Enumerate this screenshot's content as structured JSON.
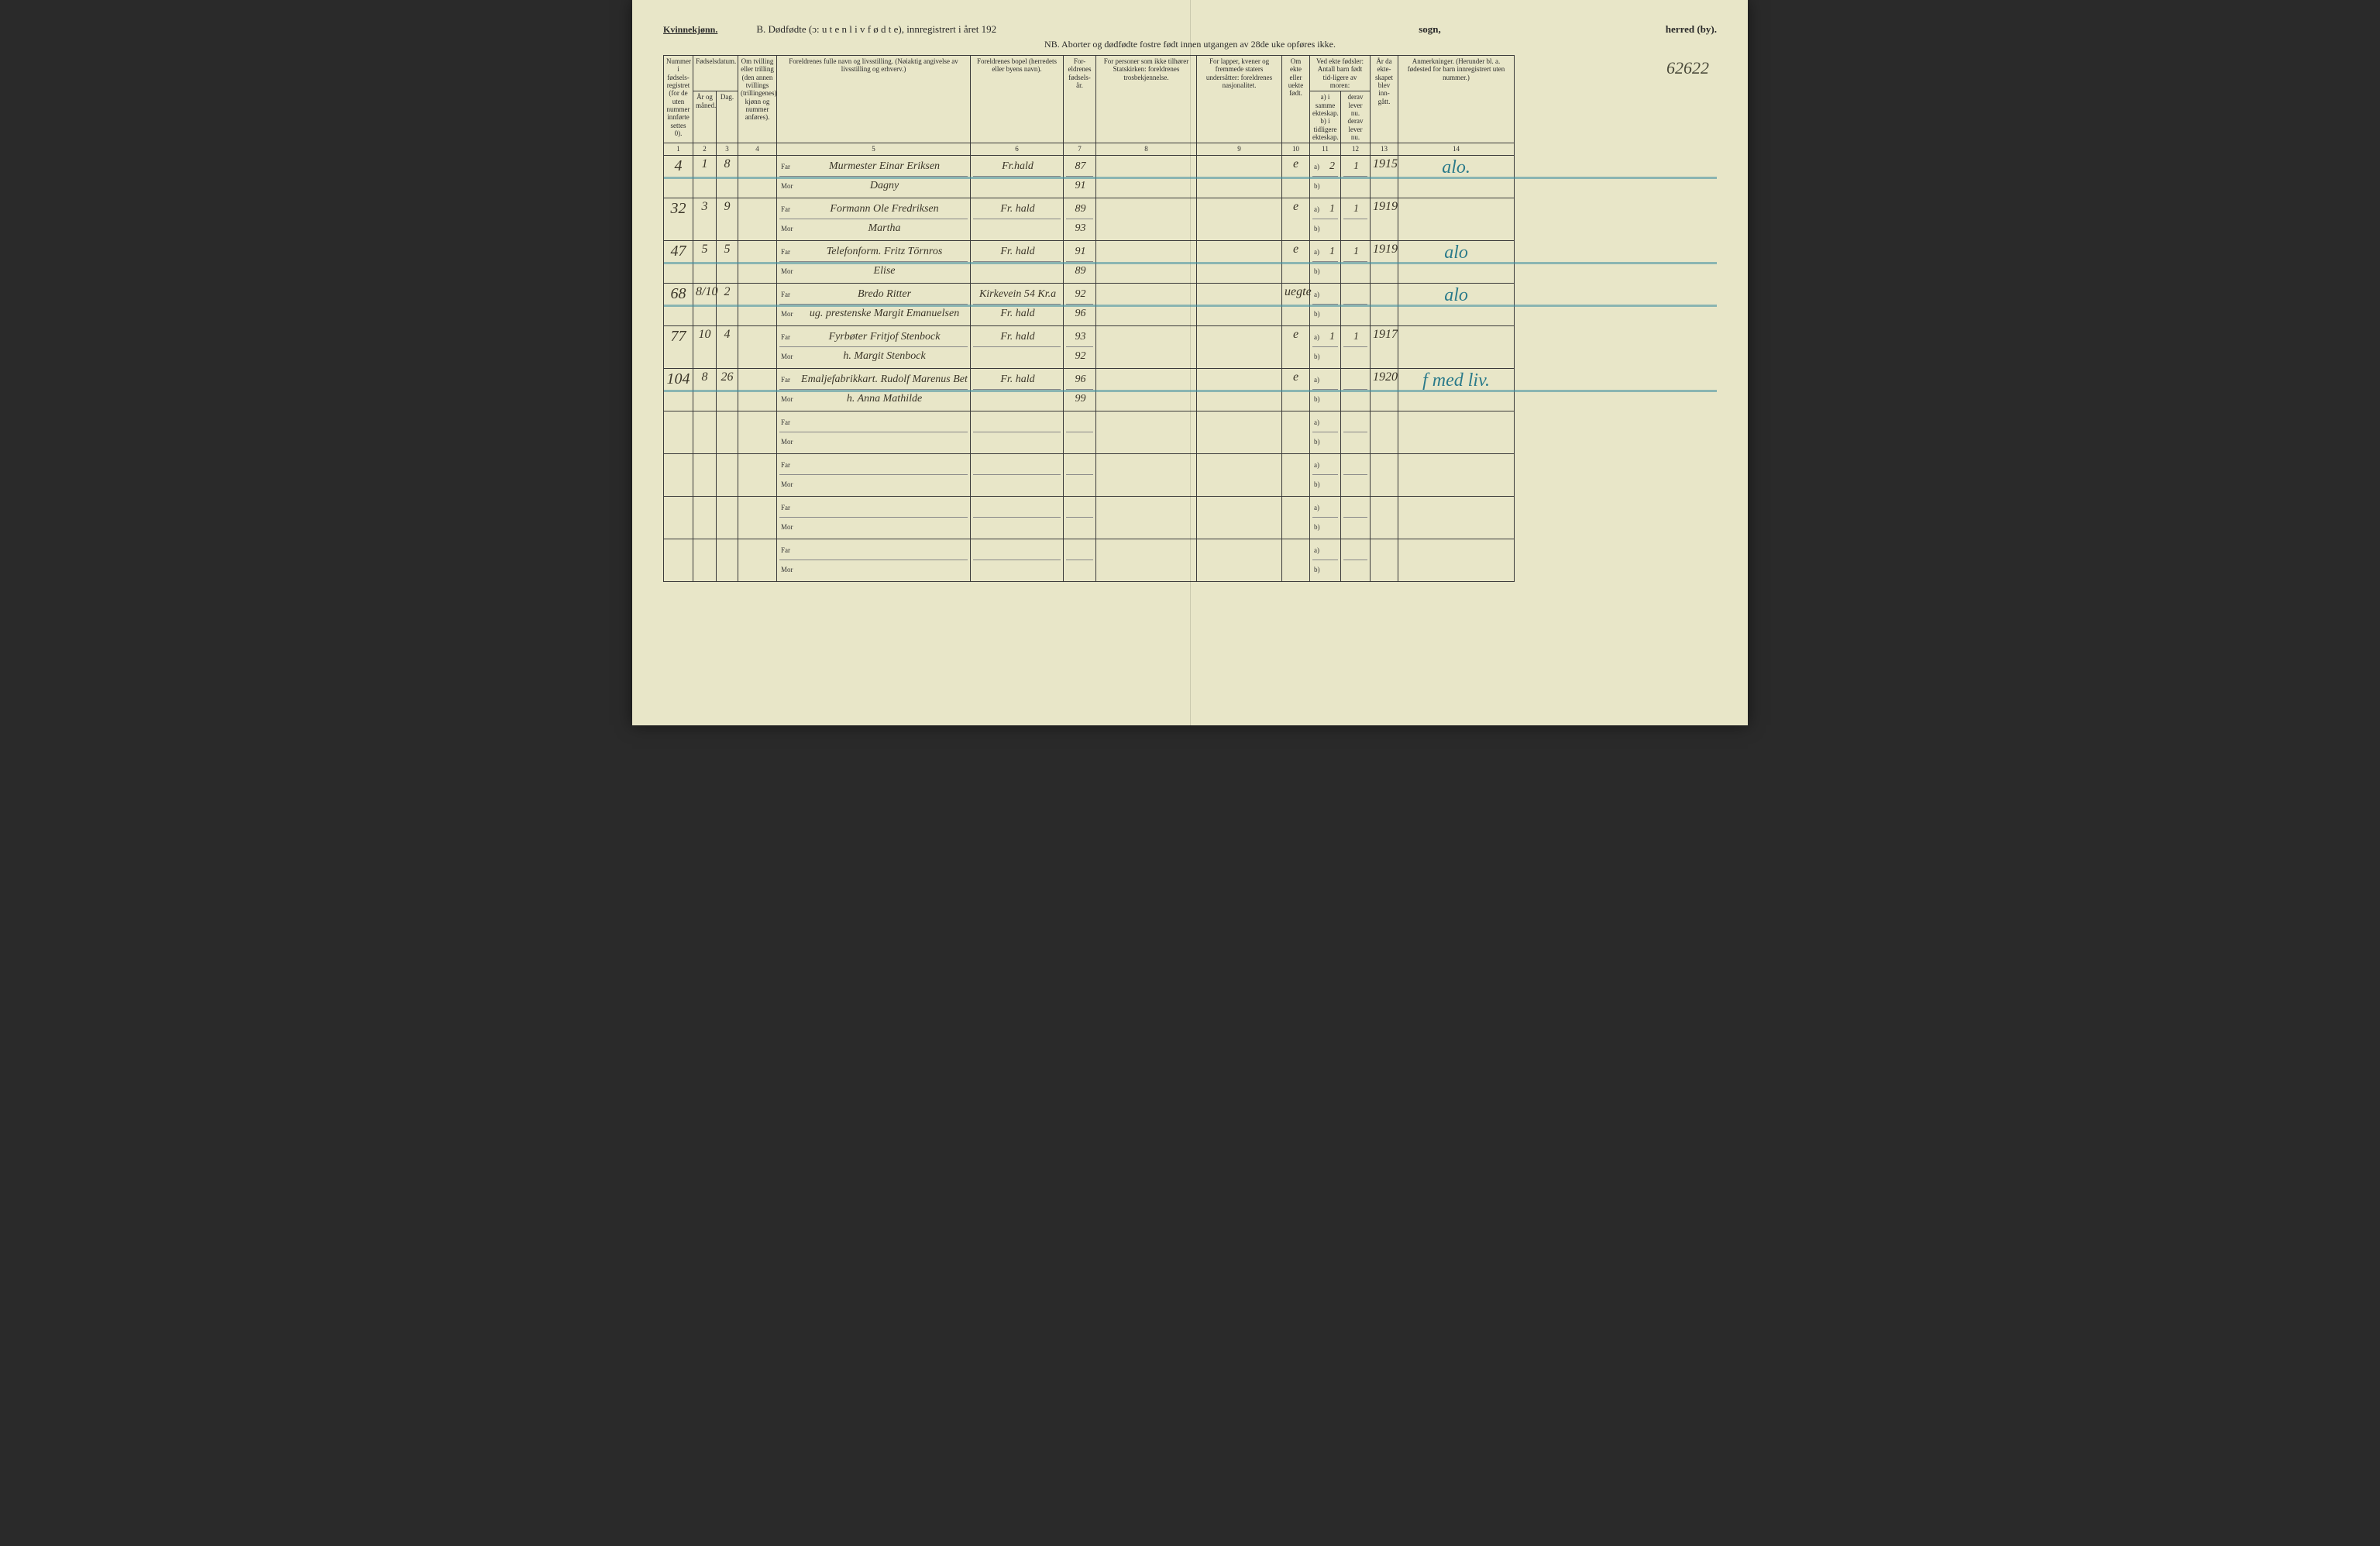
{
  "header": {
    "gender": "Kvinnekjønn.",
    "title_prefix": "B.  Dødfødte (ɔ:  u t e n  l i v  f ø d t e),  innregistrert i året 192",
    "sogn_label": "sogn,",
    "herred_label": "herred (by).",
    "nb": "NB.  Aborter og dødfødte fostre født innen utgangen av 28de uke opføres ikke.",
    "page_number_handwritten": "62622"
  },
  "columns": {
    "c1": "Nummer i fødsels-registret (for de uten nummer innførte settes 0).",
    "c2_group": "Fødselsdatum.",
    "c2": "År og måned.",
    "c3": "Dag.",
    "c4": "Om tvilling eller trilling (den annen tvillings (trillingenes) kjønn og nummer anføres).",
    "c5": "Foreldrenes fulle navn og livsstilling. (Nøiaktig angivelse av livsstilling og erhverv.)",
    "c6": "Foreldrenes bopel (herredets eller byens navn).",
    "c7": "For-eldrenes fødsels-år.",
    "c8": "For personer som ikke tilhører Statskirken: foreldrenes trosbekjennelse.",
    "c9": "For lapper, kvener og fremmede staters undersåtter: foreldrenes nasjonalitet.",
    "c10": "Om ekte eller uekte født.",
    "c11_group": "Ved ekte fødsler: Antall barn født tid-ligere av moren:",
    "c11": "a) i samme ekteskap.  b) i tidligere ekteskap.",
    "c12": "derav lever nu.  derav lever nu.",
    "c13": "År da ekte-skapet blev inn-gått.",
    "c14": "Anmerkninger. (Herunder bl. a. fødested for barn innregistrert uten nummer.)",
    "numbers": [
      "1",
      "2",
      "3",
      "4",
      "5",
      "6",
      "7",
      "8",
      "9",
      "10",
      "11",
      "12",
      "13",
      "14"
    ]
  },
  "sublabels": {
    "far": "Far",
    "mor": "Mor",
    "a": "a)",
    "b": "b)"
  },
  "rows": [
    {
      "num": "4",
      "month": "1",
      "day": "8",
      "twin": "",
      "far": "Murmester Einar Eriksen",
      "mor": "Dagny",
      "bopel_far": "Fr.hald",
      "bopel_mor": "",
      "year_far": "87",
      "year_mor": "91",
      "ekte": "e",
      "a11": "2",
      "a12": "1",
      "year_married": "1915",
      "note": "alo.",
      "struck": true
    },
    {
      "num": "32",
      "month": "3",
      "day": "9",
      "twin": "",
      "far": "Formann Ole Fredriksen",
      "mor": "Martha",
      "bopel_far": "Fr. hald",
      "bopel_mor": "",
      "year_far": "89",
      "year_mor": "93",
      "ekte": "e",
      "a11": "1",
      "a12": "1",
      "year_married": "1919",
      "note": "",
      "struck": false
    },
    {
      "num": "47",
      "month": "5",
      "day": "5",
      "twin": "",
      "far": "Telefonform. Fritz Törnros",
      "mor": "Elise",
      "bopel_far": "Fr. hald",
      "bopel_mor": "",
      "year_far": "91",
      "year_mor": "89",
      "ekte": "e",
      "a11": "1",
      "a12": "1",
      "year_married": "1919",
      "note": "alo",
      "struck": true
    },
    {
      "num": "68",
      "month": "8/10",
      "day": "2",
      "twin": "",
      "far": "Bredo Ritter",
      "mor": "ug. prestenske Margit Emanuelsen",
      "bopel_far": "Kirkevein 54 Kr.a",
      "bopel_mor": "Fr. hald",
      "year_far": "92",
      "year_mor": "96",
      "ekte": "uegte",
      "a11": "",
      "a12": "",
      "year_married": "",
      "note": "alo",
      "struck": true
    },
    {
      "num": "77",
      "month": "10",
      "day": "4",
      "twin": "",
      "far": "Fyrbøter Fritjof Stenbock",
      "mor": "h. Margit Stenbock",
      "bopel_far": "Fr. hald",
      "bopel_mor": "",
      "year_far": "93",
      "year_mor": "92",
      "ekte": "e",
      "a11": "1",
      "a12": "1",
      "year_married": "1917",
      "note": "",
      "struck": false
    },
    {
      "num": "104",
      "month": "8",
      "day": "26",
      "twin": "",
      "far": "Emaljefabrikkart. Rudolf Marenus Bettenstrøm",
      "mor": "h. Anna Mathilde",
      "bopel_far": "Fr. hald",
      "bopel_mor": "",
      "year_far": "96",
      "year_mor": "99",
      "ekte": "e",
      "a11": "",
      "a12": "",
      "year_married": "1920",
      "note": "f med liv.",
      "struck": true
    },
    {
      "empty": true
    },
    {
      "empty": true
    },
    {
      "empty": true
    },
    {
      "empty": true
    }
  ],
  "colors": {
    "paper": "#e8e6c8",
    "ink": "#2a2a2a",
    "handwriting": "#3a3528",
    "blue_pencil": "#2a7a8a",
    "rule": "#3a3a3a"
  }
}
